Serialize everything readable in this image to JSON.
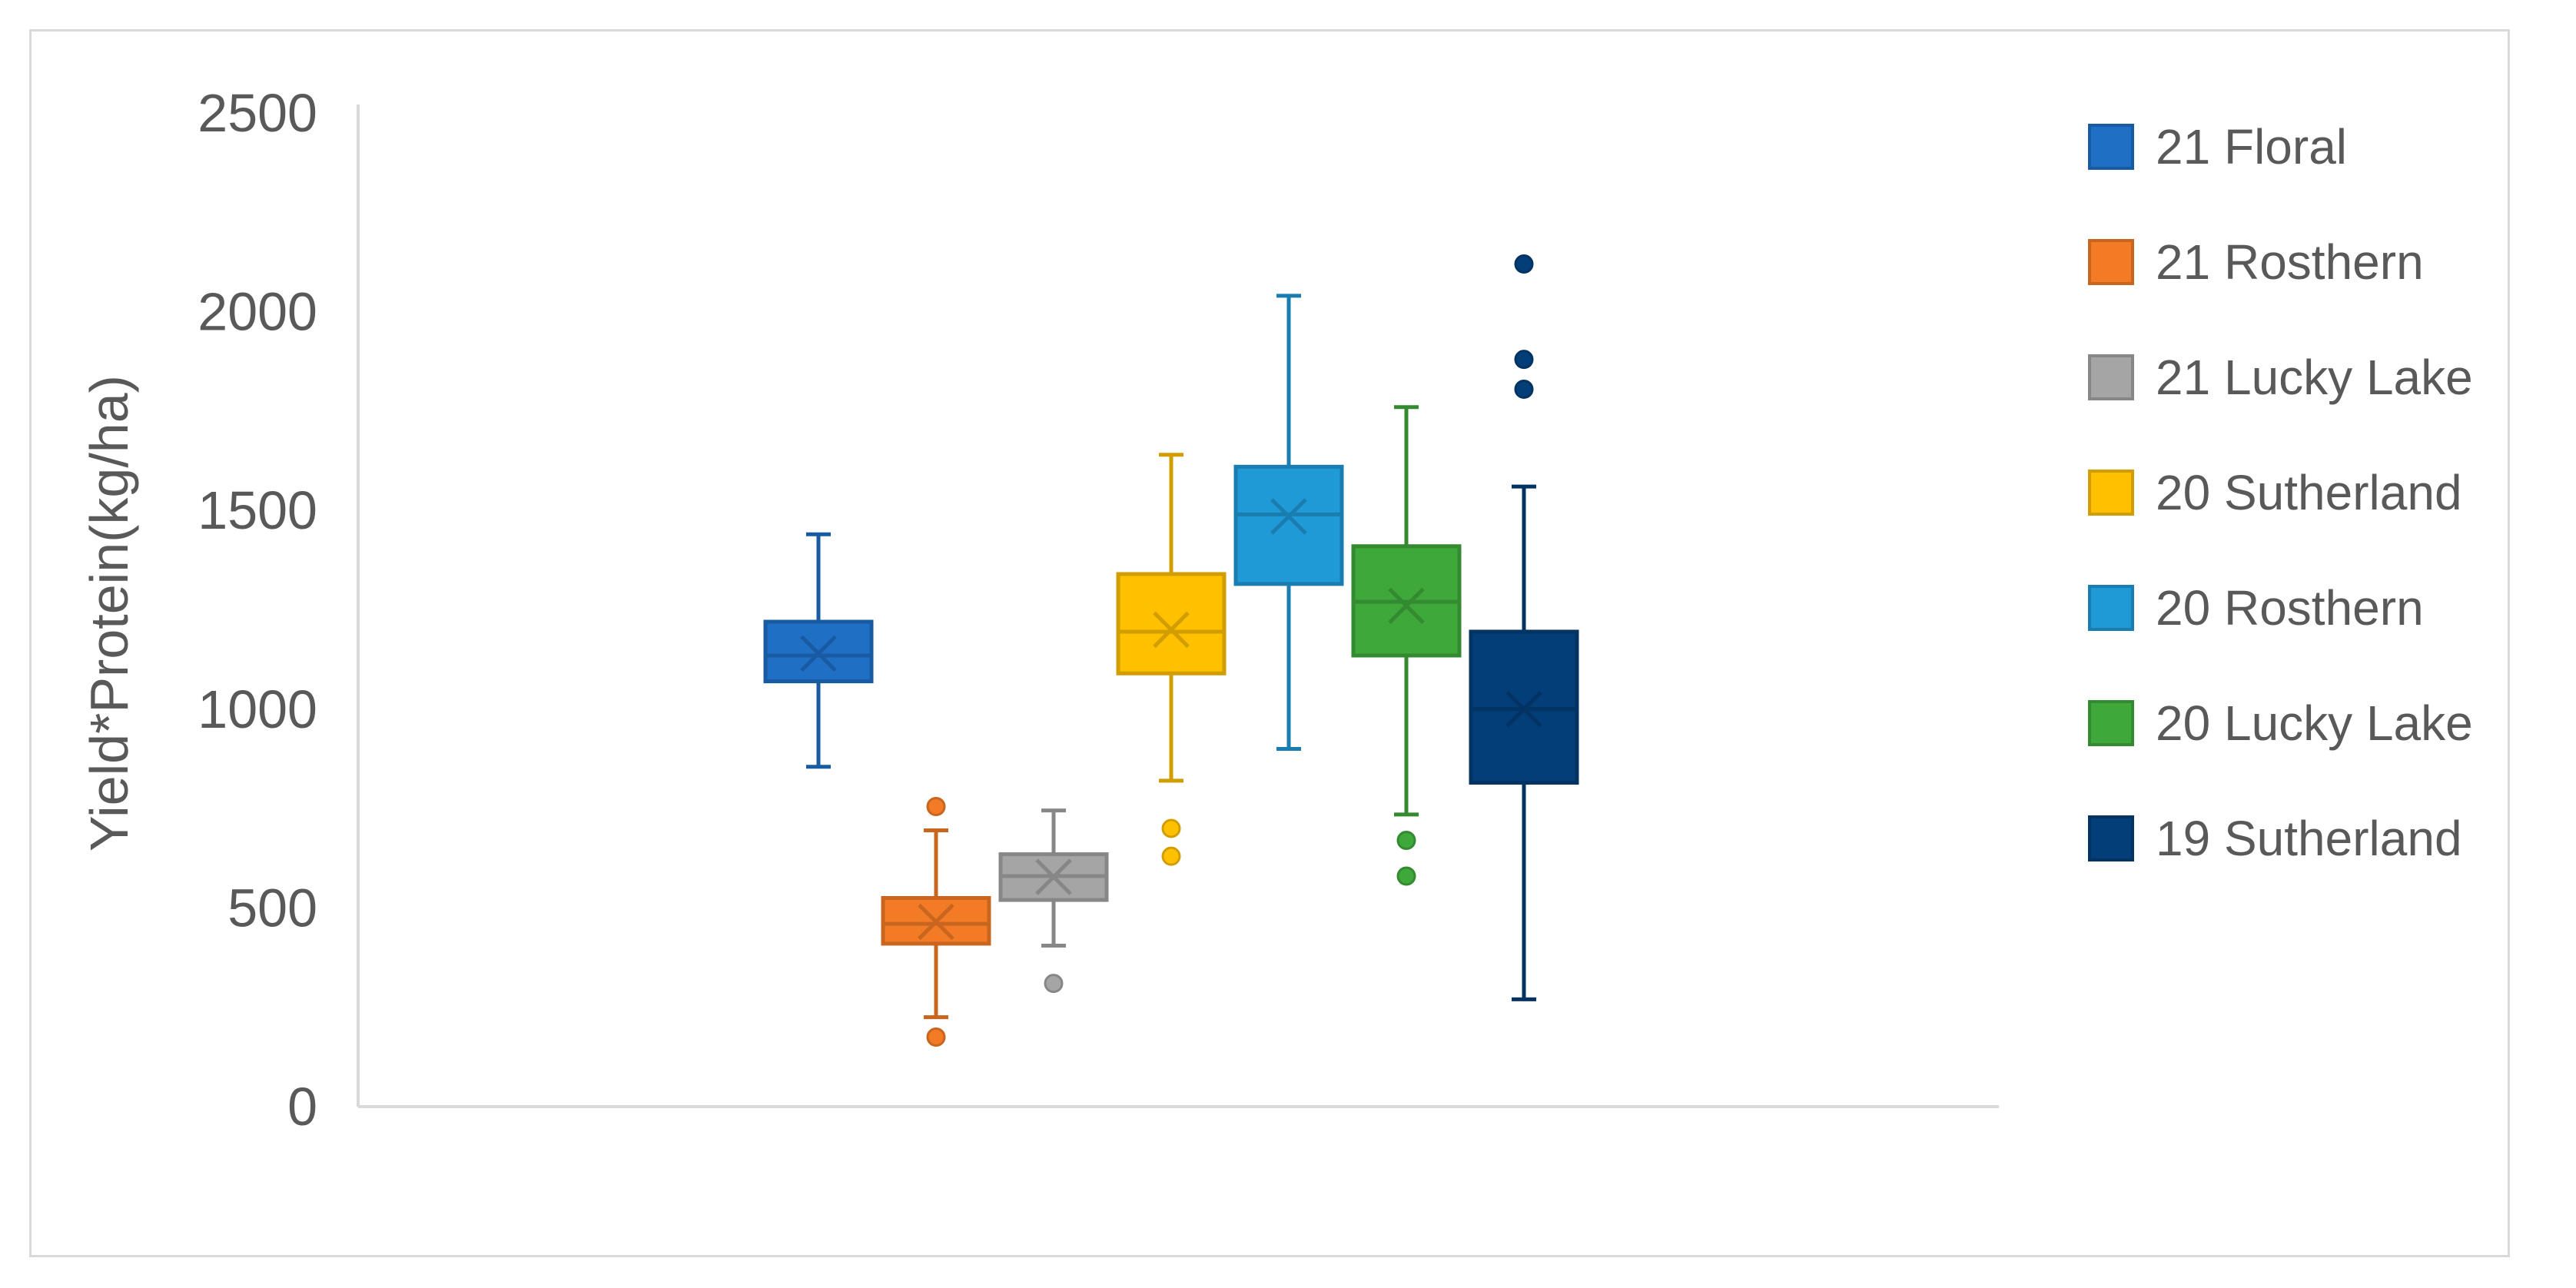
{
  "chart_data": {
    "type": "box",
    "title": "",
    "xlabel": "",
    "ylabel": "Yield*Protein(kg/ha)",
    "ylim": [
      0,
      2500
    ],
    "yticks": [
      0,
      500,
      1000,
      1500,
      2000,
      2500
    ],
    "grid": false,
    "legend_position": "right",
    "series": [
      {
        "name": "21 Floral",
        "color": "#1f6fc5",
        "min": 855,
        "q1": 1070,
        "median": 1135,
        "q3": 1220,
        "max": 1440,
        "mean": 1140,
        "outliers": []
      },
      {
        "name": "21 Rosthern",
        "color": "#f47b25",
        "min": 225,
        "q1": 410,
        "median": 460,
        "q3": 525,
        "max": 695,
        "mean": 465,
        "outliers": [
          755,
          175
        ]
      },
      {
        "name": "21 Lucky Lake",
        "color": "#a5a5a5",
        "min": 405,
        "q1": 520,
        "median": 580,
        "q3": 635,
        "max": 745,
        "mean": 578,
        "outliers": [
          310
        ]
      },
      {
        "name": "20 Sutherland",
        "color": "#ffc000",
        "min": 820,
        "q1": 1090,
        "median": 1195,
        "q3": 1340,
        "max": 1640,
        "mean": 1200,
        "outliers": [
          700,
          630
        ]
      },
      {
        "name": "20 Rosthern",
        "color": "#1f9ad6",
        "min": 900,
        "q1": 1315,
        "median": 1490,
        "q3": 1610,
        "max": 2040,
        "mean": 1485,
        "outliers": []
      },
      {
        "name": "20 Lucky Lake",
        "color": "#3fa83a",
        "min": 735,
        "q1": 1135,
        "median": 1270,
        "q3": 1410,
        "max": 1760,
        "mean": 1260,
        "outliers": [
          670,
          580
        ]
      },
      {
        "name": "19 Sutherland",
        "color": "#033e78",
        "min": 270,
        "q1": 815,
        "median": 1000,
        "q3": 1195,
        "max": 1560,
        "mean": 1000,
        "outliers": [
          2120,
          1880,
          1805
        ]
      }
    ]
  }
}
